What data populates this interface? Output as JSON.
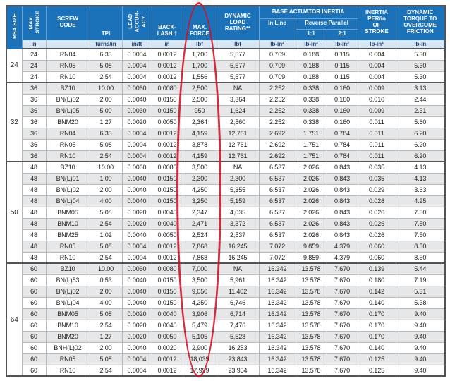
{
  "header": {
    "rsa_size": "RSA SIZE",
    "max_stroke": "MAX.\nSTROKE",
    "screw_code": "SCREW\nCODE",
    "tpi": "TPI",
    "lead_accuracy": "LEAD\nACCUR-\nACY",
    "backlash": "BACK-\nLASH †",
    "max_force": "MAX.\nFORCE",
    "dynamic_load_rating": "DYNAMIC\nLOAD\nRATING**",
    "base_actuator_inertia": "BASE ACTUATOR INERTIA",
    "in_line": "In Line",
    "reverse_parallel": "Reverse Parallel",
    "ratio_1_1": "1:1",
    "ratio_2_1": "2:1",
    "inertia_per_in": "INERTIA\nPER/in\nOF\nSTROKE",
    "dynamic_torque": "DYNAMIC\nTORQUE TO\nOVERCOME\nFRICTION"
  },
  "units": {
    "max_stroke": "in",
    "screw_code": "",
    "tpi": "turns/in",
    "lead_accuracy": "in/ft",
    "backlash": "in",
    "max_force": "lbf",
    "dynamic_load_rating": "lbf",
    "in_line": "lb-in²",
    "ratio_1_1": "lb-in²",
    "ratio_2_1": "lb-in²",
    "inertia_per_in": "lb-in²",
    "dynamic_torque": "lb-in"
  },
  "row_columns": [
    "max_stroke",
    "screw_code",
    "tpi",
    "lead_accuracy",
    "backlash",
    "max_force",
    "dynamic_load_rating",
    "in_line",
    "ratio_1_1",
    "ratio_2_1",
    "inertia_per_in",
    "dynamic_torque"
  ],
  "groups": [
    {
      "size": "24",
      "rows": [
        [
          "24",
          "RN04",
          "6.35",
          "0.0004",
          "0.0012",
          "1,700",
          "5,577",
          "0.709",
          "0.188",
          "0.115",
          "0.004",
          "5.30"
        ],
        [
          "24",
          "RN05",
          "5.08",
          "0.0004",
          "0.0012",
          "1,700",
          "5,577",
          "0.709",
          "0.188",
          "0.115",
          "0.004",
          "5.30"
        ],
        [
          "24",
          "RN10",
          "2.54",
          "0.0004",
          "0.0012",
          "1,556",
          "5,577",
          "0.709",
          "0.188",
          "0.115",
          "0.004",
          "5.30"
        ]
      ]
    },
    {
      "size": "32",
      "rows": [
        [
          "36",
          "BZ10",
          "10.00",
          "0.0060",
          "0.0080",
          "2,500",
          "NA",
          "2.252",
          "0.338",
          "0.160",
          "0.009",
          "3.13"
        ],
        [
          "36",
          "BN(L)02",
          "2.00",
          "0.0040",
          "0.0150",
          "2,500",
          "3,364",
          "2.252",
          "0.338",
          "0.160",
          "0.010",
          "2.44"
        ],
        [
          "36",
          "BN(L)05",
          "5.00",
          "0.0030",
          "0.0150",
          "950",
          "1,624",
          "2.252",
          "0.338",
          "0.160",
          "0.009",
          "2.31"
        ],
        [
          "36",
          "BNM20",
          "1.27",
          "0.0020",
          "0.0050",
          "2,364",
          "2,560",
          "2.252",
          "0.338",
          "0.160",
          "0.011",
          "5.60"
        ],
        [
          "36",
          "RN04",
          "6.35",
          "0.0004",
          "0.0012",
          "4,159",
          "12,761",
          "2.692",
          "1.751",
          "0.784",
          "0.011",
          "6.20"
        ],
        [
          "36",
          "RN05",
          "5.08",
          "0.0004",
          "0.0012",
          "3,878",
          "12,761",
          "2.692",
          "1.751",
          "0.784",
          "0.011",
          "6.20"
        ],
        [
          "36",
          "RN10",
          "2.54",
          "0.0004",
          "0.0012",
          "4,159",
          "12,761",
          "2.692",
          "1.751",
          "0.784",
          "0.011",
          "6.20"
        ]
      ]
    },
    {
      "size": "50",
      "rows": [
        [
          "48",
          "BZ10",
          "10.00",
          "0.0060",
          "0.0080",
          "3,500",
          "NA",
          "6.537",
          "2.026",
          "0.843",
          "0.035",
          "4.13"
        ],
        [
          "48",
          "BN(L)01",
          "1.00",
          "0.0040",
          "0.0150",
          "2,300",
          "2,300",
          "6.537",
          "2.026",
          "0.843",
          "0.035",
          "4.13"
        ],
        [
          "48",
          "BN(L)02",
          "2.00",
          "0.0040",
          "0.0150",
          "4,250",
          "5,355",
          "6.537",
          "2.026",
          "0.843",
          "0.029",
          "3.63"
        ],
        [
          "48",
          "BN(L)04",
          "4.00",
          "0.0040",
          "0.0150",
          "3,250",
          "5,159",
          "6.537",
          "2.026",
          "0.843",
          "0.028",
          "4.25"
        ],
        [
          "48",
          "BNM05",
          "5.08",
          "0.0020",
          "0.0040",
          "2,347",
          "4,035",
          "6.537",
          "2.026",
          "0.843",
          "0.026",
          "7.50"
        ],
        [
          "48",
          "BNM10",
          "2.54",
          "0.0020",
          "0.0040",
          "2,471",
          "3,372",
          "6.537",
          "2.026",
          "0.843",
          "0.026",
          "7.50"
        ],
        [
          "48",
          "BNM25",
          "1.02",
          "0.0040",
          "0.0050",
          "2,524",
          "2,537",
          "6.537",
          "2.026",
          "0.843",
          "0.026",
          "7.50"
        ],
        [
          "48",
          "RN05",
          "5.08",
          "0.0004",
          "0.0012",
          "7,868",
          "16,245",
          "7.072",
          "9.859",
          "4.379",
          "0.060",
          "8.50"
        ],
        [
          "48",
          "RN10",
          "2.54",
          "0.0004",
          "0.0012",
          "7,868",
          "16,245",
          "7.072",
          "9.859",
          "4.379",
          "0.060",
          "8.50"
        ]
      ]
    },
    {
      "size": "64",
      "rows": [
        [
          "60",
          "BZ10",
          "10.00",
          "0.0060",
          "0.0080",
          "7,000",
          "NA",
          "16.342",
          "13.578",
          "7.670",
          "0.139",
          "5.44"
        ],
        [
          "60",
          "BN(L)53",
          "0.53",
          "0.0040",
          "0.0150",
          "3,500",
          "5,961",
          "16.342",
          "13.578",
          "7.670",
          "0.180",
          "7.19"
        ],
        [
          "60",
          "BN(L)02",
          "2.00",
          "0.0040",
          "0.0150",
          "9,050",
          "11,402",
          "16.342",
          "13.578",
          "7.670",
          "0.142",
          "5.31"
        ],
        [
          "60",
          "BN(L)04",
          "4.00",
          "0.0040",
          "0.0150",
          "4,250",
          "6,746",
          "16.342",
          "13.578",
          "7.670",
          "0.140",
          "5.38"
        ],
        [
          "60",
          "BNM05",
          "5.08",
          "0.0020",
          "0.0040",
          "3,906",
          "6,714",
          "16.342",
          "13.578",
          "7.670",
          "0.170",
          "9.40"
        ],
        [
          "60",
          "BNM10",
          "2.54",
          "0.0020",
          "0.0040",
          "5,479",
          "7,476",
          "16.342",
          "13.578",
          "7.670",
          "0.170",
          "9.40"
        ],
        [
          "60",
          "BNM20",
          "1.27",
          "0.0020",
          "0.0050",
          "5,105",
          "5,528",
          "16.342",
          "13.578",
          "7.670",
          "0.170",
          "9.40"
        ],
        [
          "60",
          "BNH(L)02",
          "2.00",
          "0.0040",
          "0.0020",
          "2,900",
          "16,253",
          "16.342",
          "13.578",
          "7.670",
          "0.140",
          "9.40"
        ],
        [
          "60",
          "RN05",
          "5.08",
          "0.0004",
          "0.0012",
          "18,039",
          "23,843",
          "16.342",
          "13.578",
          "7.670",
          "0.125",
          "9.40"
        ],
        [
          "60",
          "RN10",
          "2.54",
          "0.0004",
          "0.0012",
          "17,999",
          "23,954",
          "16.342",
          "13.578",
          "7.670",
          "0.125",
          "9.40"
        ]
      ]
    }
  ],
  "annotation": {
    "shape": "ellipse",
    "color": "#CE1126",
    "target": "max_force_column"
  }
}
